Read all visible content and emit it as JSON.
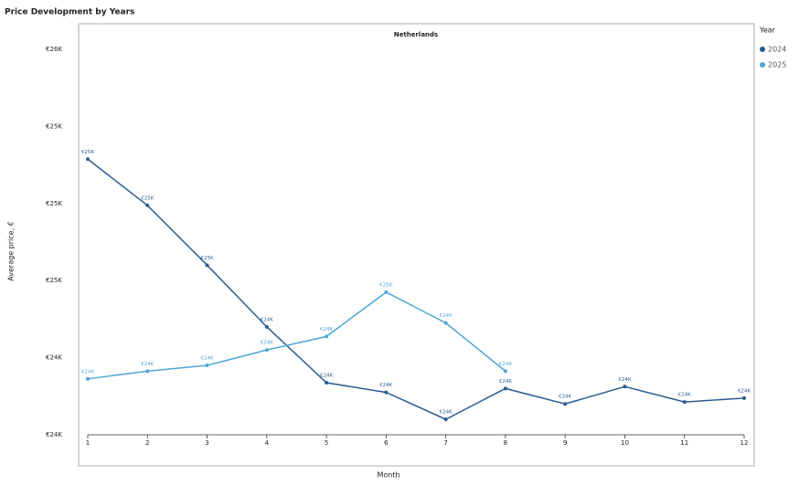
{
  "chart_data": {
    "type": "line",
    "title": "Price Development by Years",
    "subtitle": "Netherlands",
    "xlabel": "Month",
    "ylabel": "Average price, €",
    "legend_title": "Year",
    "x": [
      1,
      2,
      3,
      4,
      5,
      6,
      7,
      8,
      9,
      10,
      11,
      12
    ],
    "xlim": [
      1,
      12
    ],
    "xticks": [
      1,
      2,
      3,
      4,
      5,
      6,
      7,
      8,
      9,
      10,
      11,
      12
    ],
    "ylim": [
      23800,
      25800
    ],
    "yticks": [
      {
        "value": 23800,
        "label": "€24K"
      },
      {
        "value": 24200,
        "label": "€24K"
      },
      {
        "value": 24600,
        "label": "€25K"
      },
      {
        "value": 25000,
        "label": "€25K"
      },
      {
        "value": 25400,
        "label": "€25K"
      },
      {
        "value": 25800,
        "label": "€26K"
      }
    ],
    "series": [
      {
        "name": "2024",
        "color": "#2a5d8f",
        "values": [
          25230,
          24990,
          24680,
          24360,
          24070,
          24020,
          23880,
          24040,
          23960,
          24050,
          23970,
          23990
        ],
        "value_labels": [
          "€25K",
          "€25K",
          "€25K",
          "€24K",
          "€24K",
          "€24K",
          "€24K",
          "€24K",
          "€24K",
          "€24K",
          "€24K",
          "€24K"
        ]
      },
      {
        "name": "2025",
        "color": "#4ea6d6",
        "values": [
          24090,
          24130,
          24160,
          24240,
          24310,
          24540,
          24380,
          24130,
          null,
          null,
          null,
          null
        ],
        "value_labels": [
          "€24K",
          "€24K",
          "€24K",
          "€24K",
          "€24K",
          "€25K",
          "€24K",
          "€24K",
          null,
          null,
          null,
          null
        ]
      }
    ]
  }
}
